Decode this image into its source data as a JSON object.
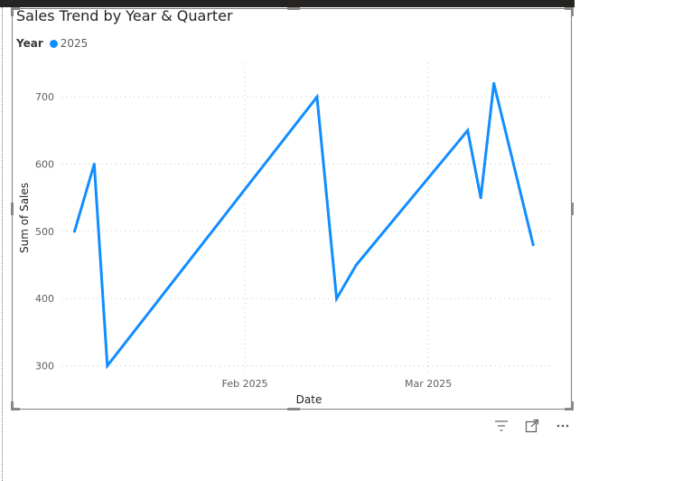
{
  "chart_data": {
    "type": "line",
    "title": "Sales Trend by Year & Quarter",
    "xlabel": "Date",
    "ylabel": "Sum of Sales",
    "legend": {
      "title": "Year",
      "placement": "top-left"
    },
    "x": [
      "2025-01-06",
      "2025-01-09",
      "2025-01-11",
      "2025-02-12",
      "2025-02-15",
      "2025-02-18",
      "2025-03-07",
      "2025-03-09",
      "2025-03-11",
      "2025-03-17"
    ],
    "x_ticks": [
      {
        "value": "2025-02-01",
        "label": "Feb 2025"
      },
      {
        "value": "2025-03-01",
        "label": "Mar 2025"
      }
    ],
    "xlim": [
      "2025-01-04",
      "2025-03-20"
    ],
    "ylim": [
      290,
      750
    ],
    "y_ticks": [
      300,
      400,
      500,
      600,
      700
    ],
    "grid": true,
    "series": [
      {
        "name": "2025",
        "color": "#118dff",
        "values": [
          500,
          600,
          300,
          700,
          400,
          450,
          650,
          550,
          720,
          480
        ]
      }
    ]
  },
  "toolbar": {
    "icons": [
      "filter-icon",
      "focus-mode-icon",
      "more-options-icon"
    ]
  }
}
